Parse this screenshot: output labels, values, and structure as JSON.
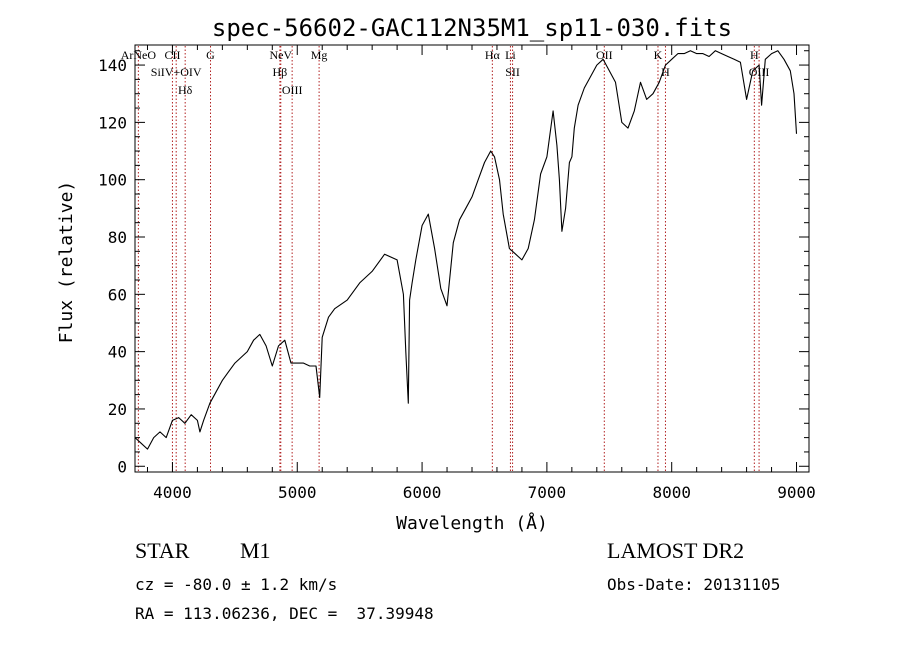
{
  "chart_data": {
    "type": "line",
    "title": "spec-56602-GAC112N35M1_sp11-030.fits",
    "xlabel": "Wavelength (Å)",
    "ylabel": "Flux (relative)",
    "xlim": [
      3700,
      9100
    ],
    "ylim": [
      -2,
      147
    ],
    "grid": false,
    "x_ticks": [
      4000,
      5000,
      6000,
      7000,
      8000,
      9000
    ],
    "y_ticks": [
      0,
      20,
      40,
      60,
      80,
      100,
      120,
      140
    ],
    "series": [
      {
        "color": "#000000",
        "x": [
          3700,
          3750,
          3800,
          3850,
          3900,
          3950,
          4000,
          4050,
          4100,
          4150,
          4200,
          4220,
          4250,
          4300,
          4350,
          4400,
          4450,
          4500,
          4550,
          4600,
          4650,
          4700,
          4750,
          4800,
          4850,
          4900,
          4950,
          5000,
          5050,
          5100,
          5150,
          5180,
          5200,
          5250,
          5300,
          5400,
          5500,
          5600,
          5700,
          5800,
          5850,
          5870,
          5890,
          5900,
          5920,
          5950,
          6000,
          6050,
          6100,
          6150,
          6200,
          6250,
          6300,
          6350,
          6400,
          6450,
          6500,
          6550,
          6580,
          6620,
          6650,
          6700,
          6750,
          6800,
          6850,
          6900,
          6950,
          7000,
          7050,
          7080,
          7100,
          7120,
          7150,
          7180,
          7200,
          7220,
          7250,
          7300,
          7350,
          7400,
          7450,
          7500,
          7550,
          7600,
          7650,
          7700,
          7750,
          7800,
          7850,
          7900,
          7950,
          8000,
          8050,
          8100,
          8150,
          8200,
          8250,
          8300,
          8350,
          8400,
          8450,
          8500,
          8550,
          8600,
          8650,
          8700,
          8720,
          8750,
          8800,
          8850,
          8900,
          8950,
          8980,
          9000
        ],
        "y": [
          10,
          8,
          6,
          10,
          12,
          10,
          16,
          17,
          15,
          18,
          16,
          12,
          16,
          22,
          26,
          30,
          33,
          36,
          38,
          40,
          44,
          46,
          42,
          35,
          42,
          44,
          36,
          36,
          36,
          35,
          35,
          24,
          45,
          52,
          55,
          58,
          64,
          68,
          74,
          72,
          60,
          40,
          22,
          58,
          64,
          72,
          84,
          88,
          76,
          62,
          56,
          78,
          86,
          90,
          94,
          100,
          106,
          110,
          108,
          100,
          88,
          76,
          74,
          72,
          76,
          86,
          102,
          108,
          124,
          112,
          100,
          82,
          90,
          106,
          108,
          118,
          126,
          132,
          136,
          140,
          142,
          138,
          134,
          120,
          118,
          124,
          134,
          128,
          130,
          134,
          140,
          142,
          144,
          144,
          145,
          144,
          144,
          143,
          145,
          144,
          143,
          142,
          141,
          128,
          138,
          140,
          126,
          142,
          144,
          145,
          142,
          138,
          130,
          116
        ]
      }
    ],
    "annotations": [
      {
        "label": "ArNeO",
        "x": 3727
      },
      {
        "label": "CII",
        "x": 4000
      },
      {
        "label": "SiIV+OIV",
        "x": 4030
      },
      {
        "label": "Hδ",
        "x": 4102
      },
      {
        "label": "G",
        "x": 4305
      },
      {
        "label": "NeV",
        "x": 4868
      },
      {
        "label": "Hβ",
        "x": 4861
      },
      {
        "label": "OIII",
        "x": 4959
      },
      {
        "label": "Mg",
        "x": 5175
      },
      {
        "label": "Hα",
        "x": 6563
      },
      {
        "label": "Li",
        "x": 6708
      },
      {
        "label": "SII",
        "x": 6725
      },
      {
        "label": "OII",
        "x": 7460
      },
      {
        "label": "K",
        "x": 7890
      },
      {
        "label": "H",
        "x": 7950
      },
      {
        "label": "H",
        "x": 8662
      },
      {
        "label": "OIII",
        "x": 8700
      }
    ]
  },
  "info": {
    "object_class": "STAR",
    "subclass": "M1",
    "survey": "LAMOST DR2",
    "velocity": "cz = -80.0 ± 1.2 km/s",
    "obs_date": "Obs-Date: 20131105",
    "coordinates": "RA = 113.06236, DEC =  37.39948"
  }
}
